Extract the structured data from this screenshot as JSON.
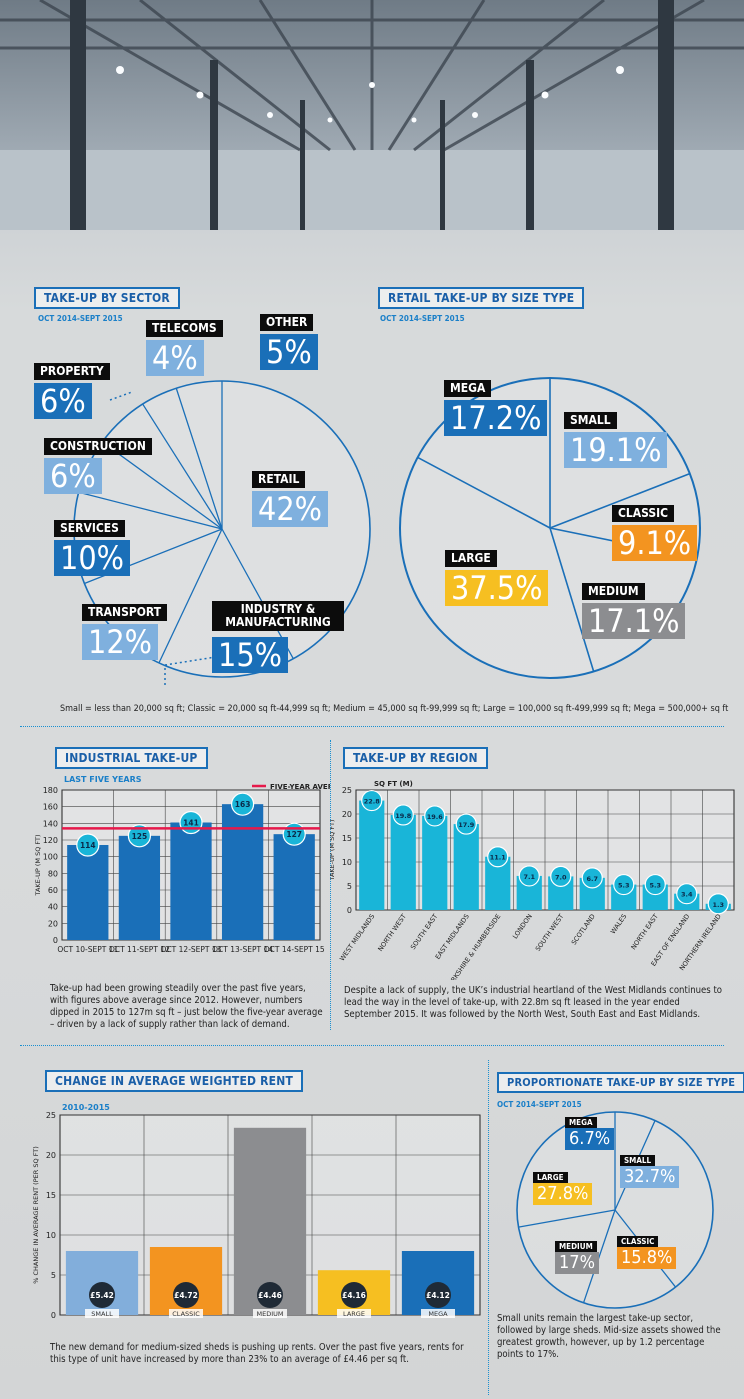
{
  "colors": {
    "blue": "#1a6fb8",
    "lightblue": "#7fb0de",
    "cyan": "#19b5d8",
    "orange": "#f39420",
    "yellow": "#f6bf21",
    "grey": "#8c8d90",
    "red": "#e6194b"
  },
  "sector": {
    "title": "TAKE-UP BY SECTOR",
    "subtitle": "OCT 2014-SEPT 2015",
    "labels": [
      {
        "name": "TELECOMS",
        "value": "4%"
      },
      {
        "name": "OTHER",
        "value": "5%"
      },
      {
        "name": "PROPERTY",
        "value": "6%"
      },
      {
        "name": "CONSTRUCTION",
        "value": "6%"
      },
      {
        "name": "RETAIL",
        "value": "42%"
      },
      {
        "name": "SERVICES",
        "value": "10%"
      },
      {
        "name": "TRANSPORT",
        "value": "12%"
      },
      {
        "name": "INDUSTRY & MANUFACTURING",
        "value": "15%"
      }
    ]
  },
  "retail": {
    "title": "RETAIL TAKE-UP BY SIZE TYPE",
    "subtitle": "OCT 2014-SEPT 2015",
    "labels": [
      {
        "name": "MEGA",
        "value": "17.2%"
      },
      {
        "name": "SMALL",
        "value": "19.1%"
      },
      {
        "name": "CLASSIC",
        "value": "9.1%"
      },
      {
        "name": "LARGE",
        "value": "37.5%"
      },
      {
        "name": "MEDIUM",
        "value": "17.1%"
      }
    ],
    "note": "Small = less than 20,000 sq ft; Classic = 20,000 sq ft-44,999 sq ft; Medium = 45,000 sq ft-99,999 sq ft; Large = 100,000 sq ft-499,999 sq ft; Mega = 500,000+ sq ft"
  },
  "industrial": {
    "title": "INDUSTRIAL TAKE-UP",
    "subtitle": "LAST FIVE YEARS",
    "paragraph": "Take-up had been growing steadily over the past five years, with figures above average since 2012. However, numbers dipped in 2015 to 127m sq ft – just below the five-year average – driven by a lack of supply rather than lack of demand."
  },
  "region": {
    "title": "TAKE-UP BY REGION",
    "paragraph": "Despite a lack of supply, the UK’s industrial heartland of the West Midlands continues to lead the way in the level of take-up, with 22.8m sq ft leased in the year ended September 2015. It was followed by the North West, South East and East Midlands."
  },
  "rent": {
    "title": "CHANGE IN AVERAGE WEIGHTED RENT",
    "subtitle": "2010-2015",
    "paragraph": "The new demand for medium-sized sheds is pushing up rents. Over the past five years, rents for this type of unit have increased by more than 23% to an average of £4.46 per sq ft."
  },
  "prop": {
    "title": "PROPORTIONATE TAKE-UP BY SIZE TYPE",
    "subtitle": "OCT 2014-SEPT 2015",
    "labels": [
      {
        "name": "MEGA",
        "value": "6.7%"
      },
      {
        "name": "SMALL",
        "value": "32.7%"
      },
      {
        "name": "LARGE",
        "value": "27.8%"
      },
      {
        "name": "CLASSIC",
        "value": "15.8%"
      },
      {
        "name": "MEDIUM",
        "value": "17%"
      }
    ],
    "paragraph": "Small units remain the largest take-up sector, followed by large sheds. Mid-size assets showed the greatest growth, however, up by 1.2 percentage points to 17%."
  },
  "chart_data": [
    {
      "type": "pie",
      "title": "TAKE-UP BY SECTOR",
      "subtitle": "OCT 2014-SEPT 2015",
      "categories": [
        "Retail",
        "Industry & Manufacturing",
        "Transport",
        "Services",
        "Construction",
        "Property",
        "Telecoms",
        "Other"
      ],
      "values": [
        42,
        15,
        12,
        10,
        6,
        6,
        4,
        5
      ]
    },
    {
      "type": "pie",
      "title": "RETAIL TAKE-UP BY SIZE TYPE",
      "subtitle": "OCT 2014-SEPT 2015",
      "categories": [
        "Small",
        "Classic",
        "Medium",
        "Large",
        "Mega"
      ],
      "values": [
        19.1,
        9.1,
        17.1,
        37.5,
        17.2
      ]
    },
    {
      "type": "bar",
      "title": "INDUSTRIAL TAKE-UP",
      "subtitle": "LAST FIVE YEARS",
      "categories": [
        "OCT 10-SEPT 11",
        "OCT 11-SEPT 12",
        "OCT 12-SEPT 13",
        "OCT 13-SEPT 14",
        "OCT 14-SEPT 15"
      ],
      "values": [
        114,
        125,
        141,
        163,
        127
      ],
      "ylabel": "TAKE-UP (M SQ FT)",
      "ylim": [
        0,
        180
      ],
      "yticks": [
        0,
        20,
        40,
        60,
        80,
        100,
        120,
        140,
        160,
        180
      ],
      "reference_line": {
        "label": "FIVE-YEAR AVERAGE",
        "value": 134
      }
    },
    {
      "type": "bar",
      "title": "TAKE-UP BY REGION",
      "unit_label": "SQ FT (M)",
      "categories": [
        "WEST MIDLANDS",
        "NORTH WEST",
        "SOUTH EAST",
        "EAST MIDLANDS",
        "YORKSHIRE & HUMBERSIDE",
        "LONDON",
        "SOUTH WEST",
        "SCOTLAND",
        "WALES",
        "NORTH EAST",
        "EAST OF ENGLAND",
        "NORTHERN IRELAND"
      ],
      "values": [
        22.8,
        19.8,
        19.6,
        17.9,
        11.1,
        7.1,
        7.0,
        6.7,
        5.3,
        5.3,
        3.4,
        1.3
      ],
      "ylabel": "TAKE-UP (M SQ FT)",
      "ylim": [
        0,
        25
      ],
      "yticks": [
        0,
        5,
        10,
        15,
        20,
        25
      ]
    },
    {
      "type": "bar",
      "title": "CHANGE IN AVERAGE WEIGHTED RENT",
      "subtitle": "2010-2015",
      "categories": [
        "SMALL",
        "CLASSIC",
        "MEDIUM",
        "LARGE",
        "MEGA"
      ],
      "values": [
        8,
        8.5,
        23.4,
        5.6,
        8
      ],
      "bar_labels": [
        "£5.42",
        "£4.72",
        "£4.46",
        "£4.16",
        "£4.12"
      ],
      "ylabel": "% CHANGE IN AVERAGE RENT (PER SQ FT)",
      "ylim": [
        0,
        25
      ],
      "yticks": [
        0,
        5,
        10,
        15,
        20,
        25
      ]
    },
    {
      "type": "pie",
      "title": "PROPORTIONATE TAKE-UP BY SIZE TYPE",
      "subtitle": "OCT 2014-SEPT 2015",
      "categories": [
        "Mega",
        "Small",
        "Classic",
        "Medium",
        "Large"
      ],
      "values": [
        6.7,
        32.7,
        15.8,
        17,
        27.8
      ]
    }
  ]
}
